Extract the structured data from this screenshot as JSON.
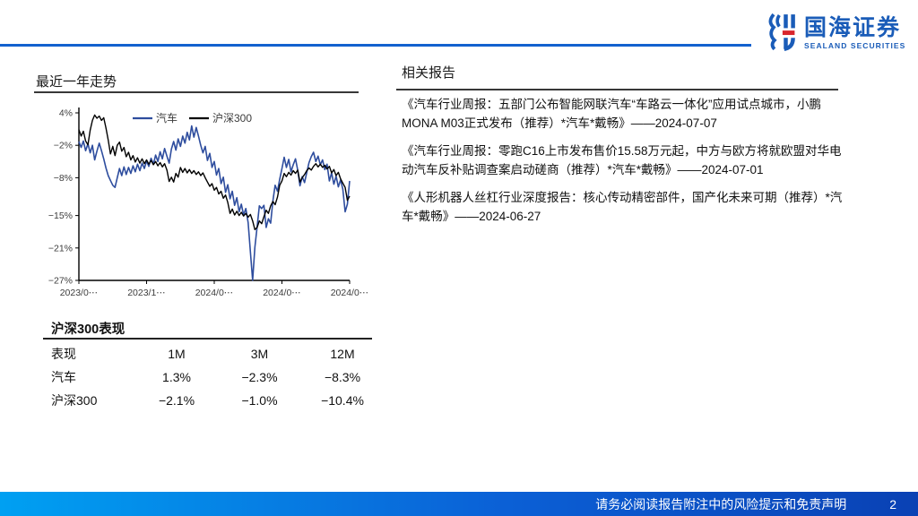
{
  "header": {
    "brand_cn": "国海证券",
    "brand_en": "SEALAND SECURITIES"
  },
  "trend_section": {
    "title": "最近一年走势"
  },
  "chart_data": {
    "type": "line",
    "title": "最近一年走势",
    "xlabel": "",
    "ylabel": "",
    "ylim": [
      -27,
      4
    ],
    "grid": false,
    "legend_position": "top-center",
    "y_ticks": [
      "4%",
      "−2%",
      "−8%",
      "−15%",
      "−21%",
      "−27%"
    ],
    "y_tick_values": [
      4,
      -2,
      -8,
      -15,
      -21,
      -27
    ],
    "x_ticks": [
      "2023/0⋯",
      "2023/1⋯",
      "2024/0⋯",
      "2024/0⋯",
      "2024/0⋯"
    ],
    "series": [
      {
        "name": "汽车",
        "color": "#2e4d9e",
        "width": 1.6,
        "values": [
          -1.3,
          -2.4,
          -1.2,
          -3.0,
          -1.7,
          -3.4,
          -2.0,
          -4.7,
          -3.1,
          -1.6,
          -3.0,
          -4.5,
          -6.2,
          -7.6,
          -8.5,
          -9.4,
          -9.8,
          -8.0,
          -6.3,
          -7.6,
          -6.0,
          -7.4,
          -6.1,
          -7.2,
          -5.8,
          -6.9,
          -5.5,
          -6.7,
          -5.3,
          -6.3,
          -4.9,
          -5.9,
          -4.4,
          -5.5,
          -3.8,
          -5.0,
          -3.2,
          -4.5,
          -2.6,
          -4.0,
          -5.3,
          -2.7,
          -1.3,
          -2.9,
          -0.8,
          -2.2,
          -0.3,
          -1.6,
          0.4,
          -1.0,
          1.6,
          -0.5,
          1.3,
          -0.3,
          -2.0,
          -3.4,
          -2.2,
          -4.8,
          -3.5,
          -6.1,
          -5.0,
          -7.5,
          -6.3,
          -9.1,
          -7.9,
          -10.7,
          -9.3,
          -11.9,
          -10.5,
          -13.1,
          -11.7,
          -14.3,
          -12.9,
          -14.9,
          -13.7,
          -16.3,
          -21.7,
          -27.0,
          -20.9,
          -17.1,
          -13.2,
          -13.7,
          -13.1,
          -17.2,
          -15.6,
          -16.4,
          -12.3,
          -9.4,
          -10.5,
          -8.3,
          -6.3,
          -4.2,
          -6.1,
          -4.6,
          -6.9,
          -5.6,
          -4.5,
          -6.6,
          -9.5,
          -7.8,
          -8.9,
          -7.0,
          -5.2,
          -4.1,
          -3.3,
          -5.0,
          -4.0,
          -5.6,
          -4.7,
          -6.5,
          -5.5,
          -8.6,
          -7.1,
          -9.2,
          -7.7,
          -9.7,
          -8.4,
          -10.1,
          -14.3,
          -12.9,
          -8.6
        ]
      },
      {
        "name": "沪深300",
        "color": "#000000",
        "width": 1.4,
        "values": [
          0.9,
          -0.3,
          0.6,
          -1.2,
          -1.9,
          0.8,
          2.6,
          3.6,
          3.0,
          3.4,
          2.6,
          3.1,
          1.2,
          -1.0,
          -3.6,
          -2.2,
          -3.9,
          -2.0,
          -1.4,
          -3.1,
          -2.4,
          -4.1,
          -3.3,
          -4.7,
          -3.9,
          -5.1,
          -4.3,
          -5.3,
          -4.5,
          -5.4,
          -4.7,
          -5.5,
          -4.8,
          -5.6,
          -5.0,
          -5.8,
          -5.2,
          -6.0,
          -5.4,
          -6.6,
          -8.7,
          -7.9,
          -8.8,
          -7.2,
          -7.9,
          -6.1,
          -7.0,
          -6.3,
          -7.1,
          -6.5,
          -7.2,
          -6.7,
          -7.4,
          -6.9,
          -7.6,
          -7.1,
          -8.0,
          -8.8,
          -9.6,
          -9.1,
          -10.3,
          -9.8,
          -11.0,
          -10.5,
          -11.8,
          -11.2,
          -12.6,
          -14.6,
          -13.8,
          -14.9,
          -14.2,
          -15.0,
          -14.4,
          -15.1,
          -14.6,
          -15.3,
          -14.8,
          -16.0,
          -17.6,
          -17.2,
          -16.0,
          -16.5,
          -15.2,
          -14.0,
          -14.6,
          -13.2,
          -12.4,
          -13.0,
          -11.6,
          -9.4,
          -8.6,
          -7.2,
          -7.8,
          -7.0,
          -7.5,
          -6.7,
          -7.2,
          -6.6,
          -8.8,
          -8.0,
          -7.4,
          -6.7,
          -6.2,
          -6.6,
          -5.9,
          -5.4,
          -6.0,
          -5.5,
          -6.1,
          -5.7,
          -6.4,
          -5.9,
          -7.1,
          -6.5,
          -7.6,
          -7.0,
          -8.2,
          -9.0,
          -9.8,
          -12.2,
          -11.4
        ]
      }
    ]
  },
  "performance_table": {
    "title": "沪深300表现",
    "headers": [
      "表现",
      "1M",
      "3M",
      "12M"
    ],
    "rows": [
      {
        "label": "汽车",
        "values": [
          "1.3%",
          "−2.3%",
          "−8.3%"
        ]
      },
      {
        "label": "沪深300",
        "values": [
          "−2.1%",
          "−1.0%",
          "−10.4%"
        ]
      }
    ]
  },
  "related_reports": {
    "title": "相关报告",
    "items": [
      {
        "text": "《汽车行业周报：五部门公布智能网联汽车“车路云一体化”应用试点城市，小鹏MONA M03正式发布（推荐）*汽车*戴畅》——2024-07-07"
      },
      {
        "text": "《汽车行业周报：零跑C16上市发布售价15.58万元起，中方与欧方将就欧盟对华电动汽车反补贴调查案启动磋商（推荐）*汽车*戴畅》——2024-07-01"
      },
      {
        "text": "《人形机器人丝杠行业深度报告：核心传动精密部件，国产化未来可期（推荐）*汽车*戴畅》——2024-06-27"
      }
    ]
  },
  "footer": {
    "disclaimer": "请务必阅读报告附注中的风险提示和免责声明",
    "page_number": "2"
  },
  "colors": {
    "brand_blue": "#1a5cb8",
    "brand_red": "#d8252d",
    "header_rule_blue": "#1261cf",
    "series_auto_blue": "#2e4d9e",
    "series_csi300_black": "#000000",
    "footer_gradient_left": "#00a0f2",
    "footer_gradient_right": "#0a41b4"
  }
}
